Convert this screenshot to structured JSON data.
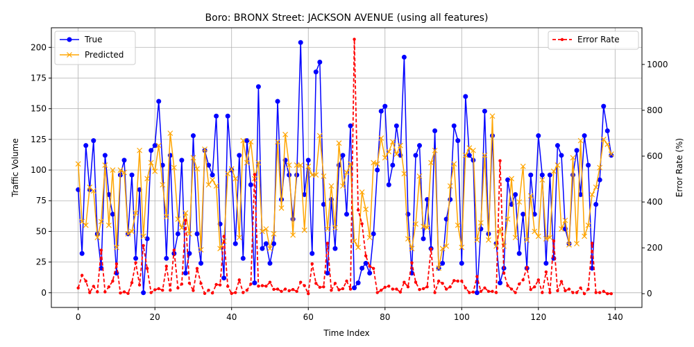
{
  "chart_data": {
    "type": "line",
    "title": "Boro: BRONX Street: JACKSON AVENUE (using all features)",
    "xlabel": "Time Index",
    "ylabel": "Traffic Volume",
    "y2label": "Error Rate (%)",
    "xlim": [
      -7,
      147
    ],
    "ylim": [
      -12,
      216
    ],
    "y2lim": [
      -60,
      1160
    ],
    "x_ticks": [
      0,
      20,
      40,
      60,
      80,
      100,
      120,
      140
    ],
    "y_ticks": [
      0,
      25,
      50,
      75,
      100,
      125,
      150,
      175,
      200
    ],
    "y2_ticks": [
      0,
      200,
      400,
      600,
      800,
      1000
    ],
    "grid": true,
    "legend_left": "top-left",
    "legend_right": "top-right",
    "colors": {
      "true": "#0000ff",
      "predicted": "#ffa500",
      "error": "#ff0000"
    },
    "series": [
      {
        "name": "True",
        "axis": "left",
        "marker": "circle",
        "values": [
          84,
          32,
          120,
          84,
          124,
          48,
          20,
          112,
          80,
          64,
          16,
          96,
          108,
          48,
          96,
          28,
          84,
          0,
          44,
          116,
          120,
          156,
          104,
          28,
          112,
          32,
          48,
          108,
          16,
          32,
          128,
          48,
          24,
          116,
          104,
          96,
          144,
          56,
          12,
          144,
          100,
          40,
          112,
          28,
          124,
          88,
          8,
          168,
          36,
          40,
          24,
          40,
          156,
          76,
          108,
          96,
          60,
          96,
          204,
          80,
          108,
          32,
          180,
          188,
          72,
          16,
          76,
          36,
          104,
          112,
          64,
          136,
          4,
          8,
          20,
          24,
          16,
          48,
          100,
          148,
          152,
          88,
          104,
          136,
          112,
          192,
          64,
          16,
          112,
          120,
          44,
          76,
          36,
          132,
          20,
          24,
          60,
          76,
          136,
          124,
          24,
          160,
          112,
          108,
          0,
          52,
          148,
          48,
          128,
          40,
          8,
          20,
          92,
          72,
          80,
          32,
          64,
          20,
          96,
          64,
          128,
          96,
          24,
          96,
          28,
          120,
          112,
          52,
          40,
          96,
          116,
          80,
          128,
          104,
          20,
          72,
          92,
          152,
          132,
          112
        ]
      },
      {
        "name": "Predicted",
        "axis": "left",
        "marker": "x",
        "values": [
          105,
          58,
          55,
          86,
          83,
          45,
          58,
          104,
          55,
          100,
          37,
          100,
          98,
          48,
          50,
          65,
          116,
          46,
          93,
          106,
          99,
          120,
          88,
          62,
          130,
          102,
          60,
          53,
          65,
          48,
          110,
          101,
          35,
          117,
          88,
          92,
          87,
          36,
          42,
          97,
          101,
          93,
          45,
          124,
          106,
          123,
          93,
          106,
          50,
          52,
          36,
          48,
          123,
          69,
          129,
          104,
          47,
          104,
          104,
          51,
          103,
          96,
          96,
          128,
          95,
          52,
          87,
          53,
          122,
          87,
          98,
          105,
          42,
          37,
          82,
          68,
          45,
          106,
          105,
          126,
          110,
          115,
          123,
          113,
          120,
          97,
          44,
          36,
          56,
          95,
          54,
          53,
          106,
          116,
          20,
          36,
          38,
          87,
          105,
          55,
          37,
          112,
          118,
          116,
          43,
          57,
          112,
          43,
          144,
          38,
          52,
          38,
          60,
          93,
          45,
          74,
          103,
          43,
          79,
          50,
          46,
          92,
          44,
          45,
          99,
          104,
          52,
          59,
          39,
          110,
          40,
          124,
          46,
          55,
          80,
          86,
          102,
          125,
          121,
          113
        ]
      },
      {
        "name": "Error Rate",
        "axis": "right",
        "marker": "dot",
        "dashed": true,
        "values": [
          25,
          80,
          55,
          5,
          32,
          8,
          190,
          8,
          30,
          55,
          130,
          3,
          8,
          1,
          48,
          135,
          38,
          210,
          110,
          5,
          17,
          22,
          15,
          120,
          15,
          190,
          25,
          42,
          320,
          46,
          14,
          110,
          45,
          1,
          15,
          3,
          40,
          38,
          250,
          32,
          1,
          5,
          60,
          5,
          15,
          42,
          520,
          33,
          35,
          33,
          50,
          19,
          20,
          10,
          20,
          13,
          18,
          10,
          50,
          35,
          0,
          130,
          45,
          28,
          30,
          220,
          15,
          45,
          17,
          22,
          55,
          20,
          1110,
          365,
          305,
          165,
          120,
          110,
          5,
          15,
          28,
          33,
          20,
          20,
          7,
          50,
          30,
          135,
          50,
          18,
          22,
          30,
          195,
          5,
          55,
          45,
          20,
          30,
          57,
          55,
          55,
          25,
          5,
          7,
          75,
          10,
          25,
          10,
          10,
          5,
          580,
          90,
          35,
          20,
          5,
          42,
          60,
          115,
          18,
          30,
          60,
          5,
          95,
          5,
          230,
          13,
          53,
          13,
          20,
          5,
          5,
          25,
          0,
          20,
          220,
          5,
          5,
          10,
          0,
          0
        ]
      }
    ]
  }
}
